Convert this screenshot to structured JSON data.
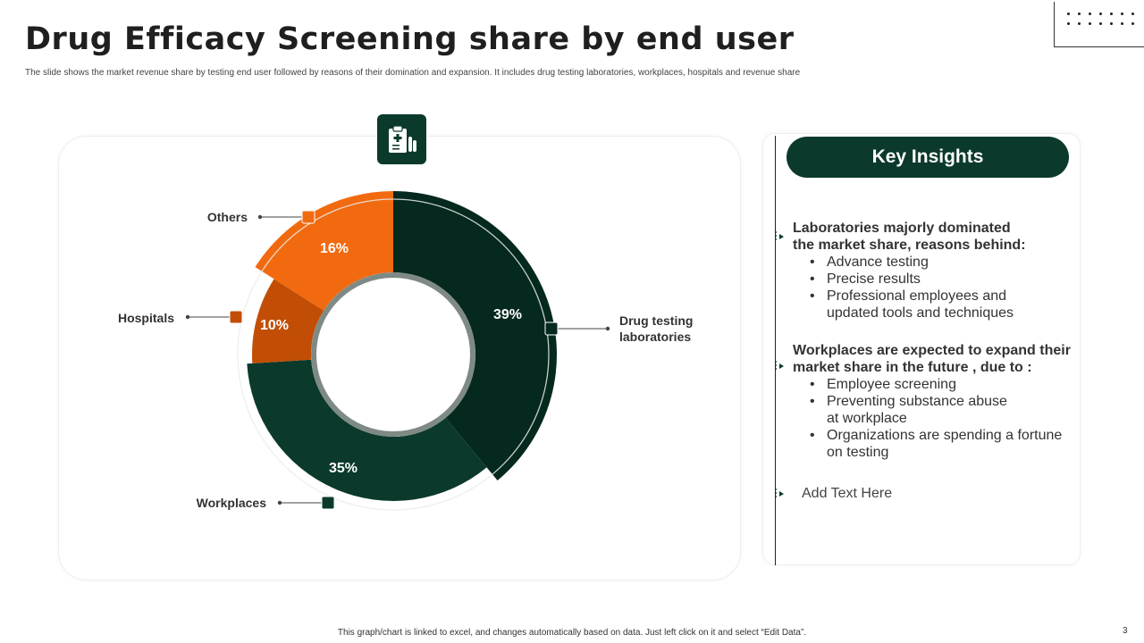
{
  "slide": {
    "title": "Drug Efficacy Screening share by end user",
    "subtitle": "The slide shows the market revenue share by testing end user followed by reasons of their domination and expansion. It includes drug testing laboratories, workplaces, hospitals and revenue share",
    "footer": "This graph/chart is linked to excel, and changes automatically based on data. Just left click on it and select “Edit Data”.",
    "page_number": "3"
  },
  "icons": {
    "chart_badge": "medical-clipboard-icon",
    "marker": "arrow-marker-icon"
  },
  "colors": {
    "dark_green": "#0b3a2c",
    "darker_green": "#05291f",
    "orange": "#f26a10",
    "dark_orange": "#c24e06"
  },
  "chart_data": {
    "type": "pie",
    "variant": "donut",
    "title": "",
    "categories": [
      "Drug testing laboratories",
      "Workplaces",
      "Hospitals",
      "Others"
    ],
    "values": [
      39,
      35,
      10,
      16
    ],
    "value_labels": [
      "39%",
      "35%",
      "10%",
      "16%"
    ],
    "colors": [
      "#05291f",
      "#0b3a2c",
      "#c24e06",
      "#f26a10"
    ],
    "start": "top",
    "direction": "clockwise"
  },
  "insights": {
    "header": "Key Insights",
    "blocks": [
      {
        "heading_lines": [
          "Laboratories majorly dominated",
          "the market share, reasons behind:"
        ],
        "bullets": [
          [
            "Advance testing"
          ],
          [
            "Precise results"
          ],
          [
            "Professional employees and",
            "updated tools and techniques"
          ]
        ]
      },
      {
        "heading_lines": [
          "Workplaces are expected to expand their",
          "market share in the future , due to :"
        ],
        "bullets": [
          [
            "Employee screening"
          ],
          [
            "Preventing substance abuse",
            "at workplace"
          ],
          [
            "Organizations are spending a fortune",
            "on testing"
          ]
        ]
      }
    ],
    "add_text": "Add Text Here"
  }
}
